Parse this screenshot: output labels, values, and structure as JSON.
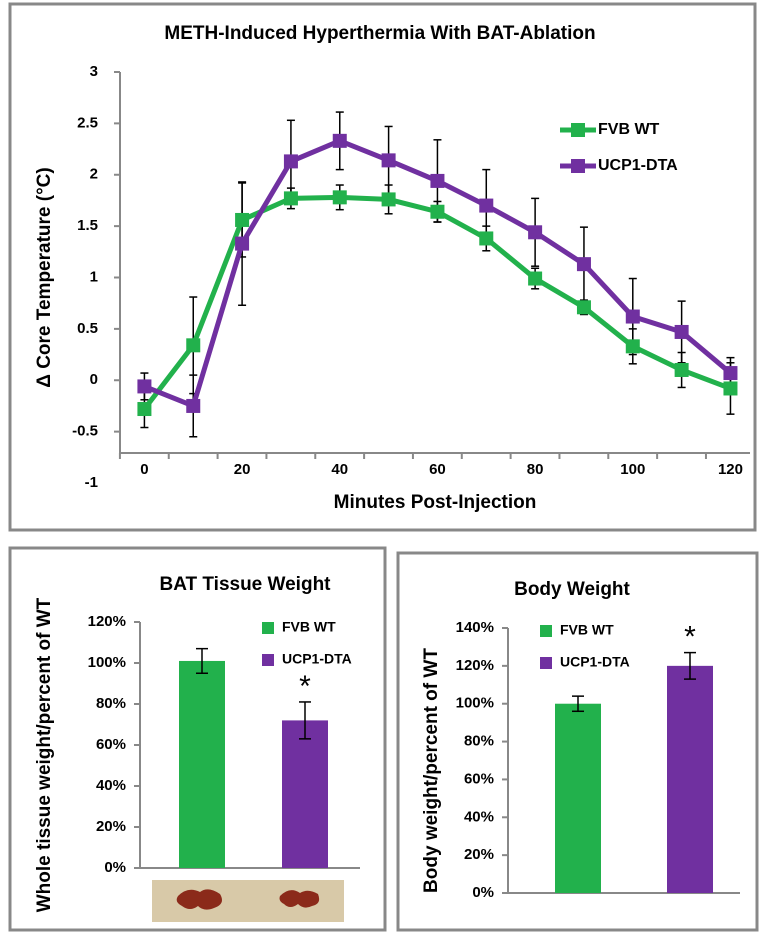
{
  "chart_data": [
    {
      "type": "line",
      "title": "METH-Induced Hyperthermia With BAT-Ablation",
      "x_label": "Minutes Post-Injection",
      "y_label": "Δ Core Temperature (°C)",
      "x": [
        0,
        10,
        20,
        30,
        40,
        50,
        60,
        70,
        80,
        90,
        100,
        110,
        120
      ],
      "series": [
        {
          "name": "FVB WT",
          "color": "#22b14c",
          "values": [
            -0.28,
            0.34,
            1.56,
            1.77,
            1.78,
            1.76,
            1.64,
            1.38,
            0.99,
            0.71,
            0.33,
            0.1,
            -0.08
          ],
          "errors": [
            0.18,
            0.47,
            0.36,
            0.1,
            0.12,
            0.14,
            0.1,
            0.12,
            0.1,
            0.07,
            0.17,
            0.17,
            0.25
          ]
        },
        {
          "name": "UCP1-DTA",
          "color": "#7030a0",
          "values": [
            -0.06,
            -0.25,
            1.33,
            2.13,
            2.33,
            2.14,
            1.94,
            1.7,
            1.44,
            1.13,
            0.62,
            0.47,
            0.07
          ],
          "errors": [
            0.13,
            0.3,
            0.6,
            0.4,
            0.28,
            0.33,
            0.4,
            0.35,
            0.33,
            0.36,
            0.37,
            0.3,
            0.15
          ]
        }
      ],
      "xlim": [
        -5,
        124
      ],
      "xticks": [
        0,
        20,
        40,
        60,
        80,
        100,
        120
      ],
      "ylim": [
        -1,
        3
      ],
      "yticks": [
        -1,
        -0.5,
        0,
        0.5,
        1,
        1.5,
        2,
        2.5,
        3
      ]
    },
    {
      "type": "bar",
      "title": "BAT Tissue Weight",
      "y_label": "Whole tissue weight/percent of WT",
      "series": [
        {
          "name": "FVB WT",
          "color": "#22b14c",
          "values": [
            101
          ],
          "errors": [
            6
          ]
        },
        {
          "name": "UCP1-DTA",
          "color": "#7030a0",
          "values": [
            72
          ],
          "errors": [
            9
          ]
        }
      ],
      "annotation": "*",
      "ylim": [
        0,
        120
      ],
      "yticks": [
        {
          "value": 0,
          "label": "0%"
        },
        {
          "value": 20,
          "label": "20%"
        },
        {
          "value": 40,
          "label": "40%"
        },
        {
          "value": 60,
          "label": "60%"
        },
        {
          "value": 80,
          "label": "80%"
        },
        {
          "value": 100,
          "label": "100%"
        },
        {
          "value": 120,
          "label": "120%"
        }
      ]
    },
    {
      "type": "bar",
      "title": "Body Weight",
      "y_label": "Body weight/percent of WT",
      "series": [
        {
          "name": "FVB WT",
          "color": "#22b14c",
          "values": [
            100
          ],
          "errors": [
            4
          ]
        },
        {
          "name": "UCP1-DTA",
          "color": "#7030a0",
          "values": [
            120
          ],
          "errors": [
            7
          ]
        }
      ],
      "annotation": "*",
      "ylim": [
        0,
        140
      ],
      "yticks": [
        {
          "value": 0,
          "label": "0%"
        },
        {
          "value": 20,
          "label": "20%"
        },
        {
          "value": 40,
          "label": "40%"
        },
        {
          "value": 60,
          "label": "60%"
        },
        {
          "value": 80,
          "label": "80%"
        },
        {
          "value": 100,
          "label": "100%"
        },
        {
          "value": 120,
          "label": "120%"
        },
        {
          "value": 140,
          "label": "140%"
        }
      ]
    }
  ]
}
